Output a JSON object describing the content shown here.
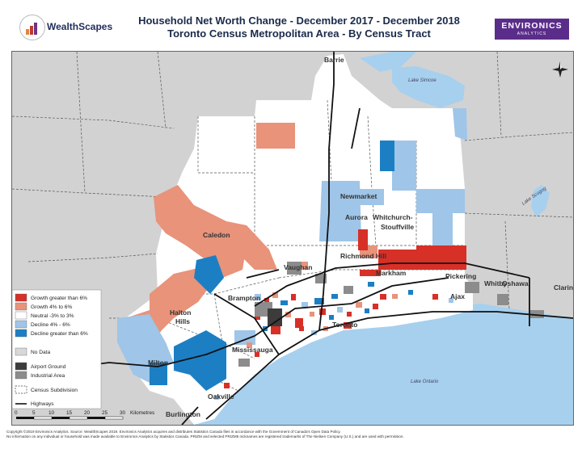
{
  "header": {
    "logo_text": "WealthScapes",
    "title_line1": "Household Net Worth Change - December 2017 - December 2018",
    "title_line2": "Toronto Census Metropolitan Area - By Census Tract",
    "brand_main": "ENVIRONICS",
    "brand_sub": "ANALYTICS"
  },
  "colors": {
    "growth_gt_6": "#d73027",
    "growth_4_6": "#e8937a",
    "neutral": "#ffffff",
    "decline_4_6": "#9fc5e8",
    "decline_gt_6": "#1c7fc4",
    "no_data": "#d8d8d8",
    "airport": "#3c3c3c",
    "industrial": "#8c8c8c",
    "water": "#a7d0ee",
    "outside": "#d2d2d2"
  },
  "map": {
    "places": {
      "barrie": "Barrie",
      "newmarket": "Newmarket",
      "aurora": "Aurora",
      "whitchurch1": "Whitchurch-",
      "whitchurch2": "Stouffville",
      "caledon": "Caledon",
      "richmond_hill": "Richmond Hill",
      "vaughan": "Vaughan",
      "markham": "Markham",
      "pickering": "Pickering",
      "whitby": "Whitby",
      "oshawa": "Oshawa",
      "clarington": "Clarin",
      "ajax": "Ajax",
      "brampton": "Brampton",
      "halton1": "Halton",
      "halton2": "Hills",
      "toronto": "Toronto",
      "mississauga": "Mississauga",
      "milton": "Milton",
      "oakville": "Oakville",
      "burlington": "Burlington"
    },
    "water": {
      "lake_simcoe": "Lake Simcoe",
      "lake_scugog": "Lake Scugog",
      "lake_ontario": "Lake Ontario"
    }
  },
  "legend": {
    "items": [
      {
        "label": "Growth greater than 6%",
        "color": "#d73027"
      },
      {
        "label": "Growth 4% to 6%",
        "color": "#e8937a"
      },
      {
        "label": "Neutral -3% to 3%",
        "color": "#ffffff"
      },
      {
        "label": "Decline 4% - 6%",
        "color": "#9fc5e8"
      },
      {
        "label": "Decline greater than 6%",
        "color": "#1c7fc4"
      }
    ],
    "no_data": "No Data",
    "airport": "Airport Ground",
    "industrial": "Industrial Area",
    "census_subdivision": "Census Subdivision",
    "highways": "Highways"
  },
  "scale_bar": {
    "ticks": [
      "0",
      "5",
      "10",
      "15",
      "20",
      "25",
      "30"
    ],
    "unit": "Kilometres"
  },
  "footer": {
    "line1": "Copyright ©2019 Environics Analytics. Source: WealthScapes 2019. Environics Analytics acquires and distributes Statistics Canada files in accordance with the Government of Canada's Open Data Policy.",
    "line2": "No information on any individual or household was made available to Environics Analytics by Statistics Canada. PRIZM and selected PRIZM5 nicknames are registered trademarks of The Nielsen Company (U.S.) and are used with permission."
  }
}
